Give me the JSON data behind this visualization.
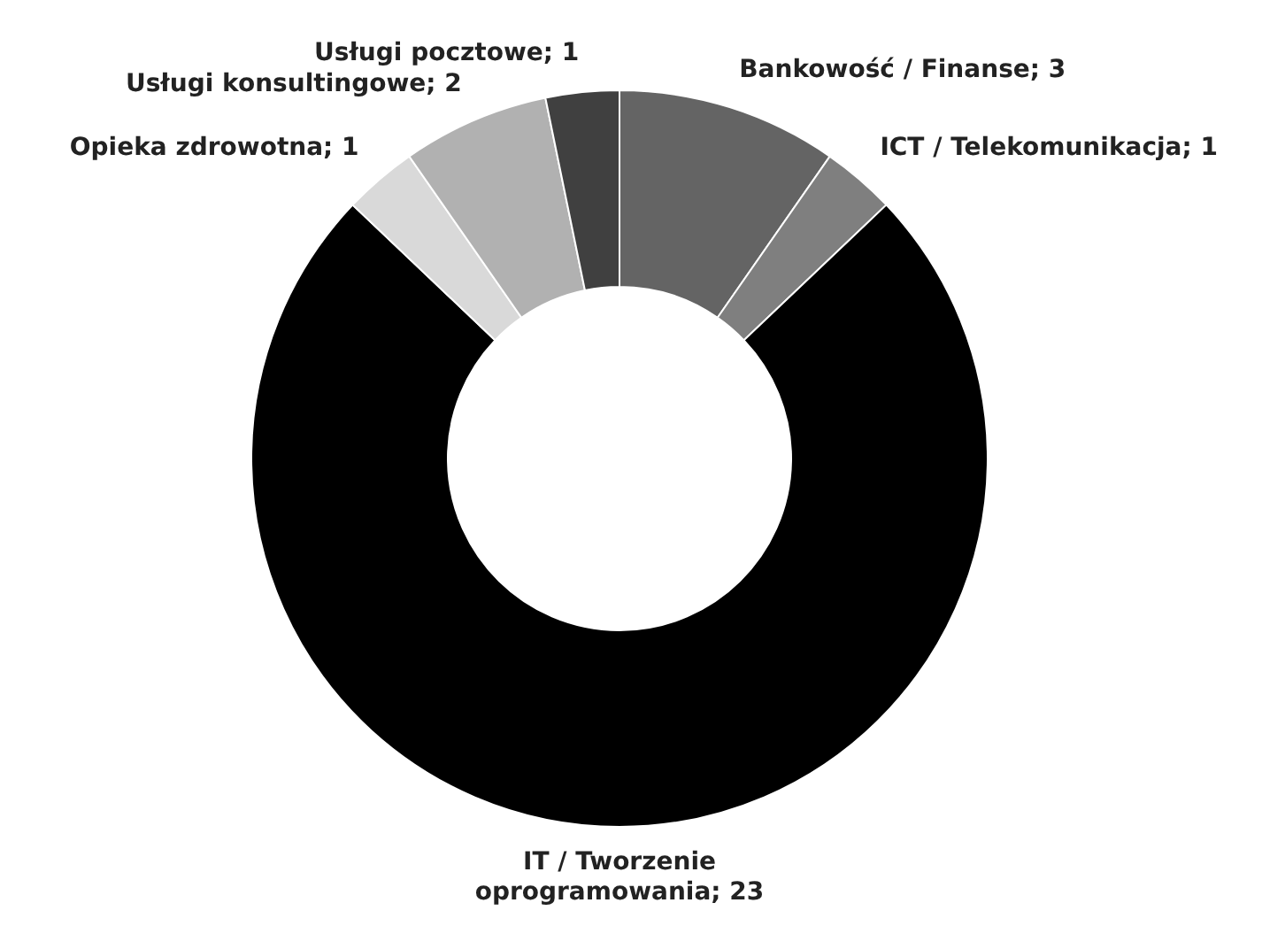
{
  "chart_data": {
    "type": "donut",
    "categories": [
      "Bankowość / Finanse; 3",
      "ICT / Telekomunikacja; 1",
      "IT / Tworzenie oprogramowania; 23",
      "Opieka zdrowotna; 1",
      "Usługi konsultingowe; 2",
      "Usługi pocztowe; 1"
    ],
    "values": [
      3,
      1,
      23,
      1,
      2,
      1
    ],
    "colors": [
      "#646464",
      "#7f7f7f",
      "#000000",
      "#d9d9d9",
      "#b1b1b1",
      "#404040"
    ],
    "legend": false
  }
}
